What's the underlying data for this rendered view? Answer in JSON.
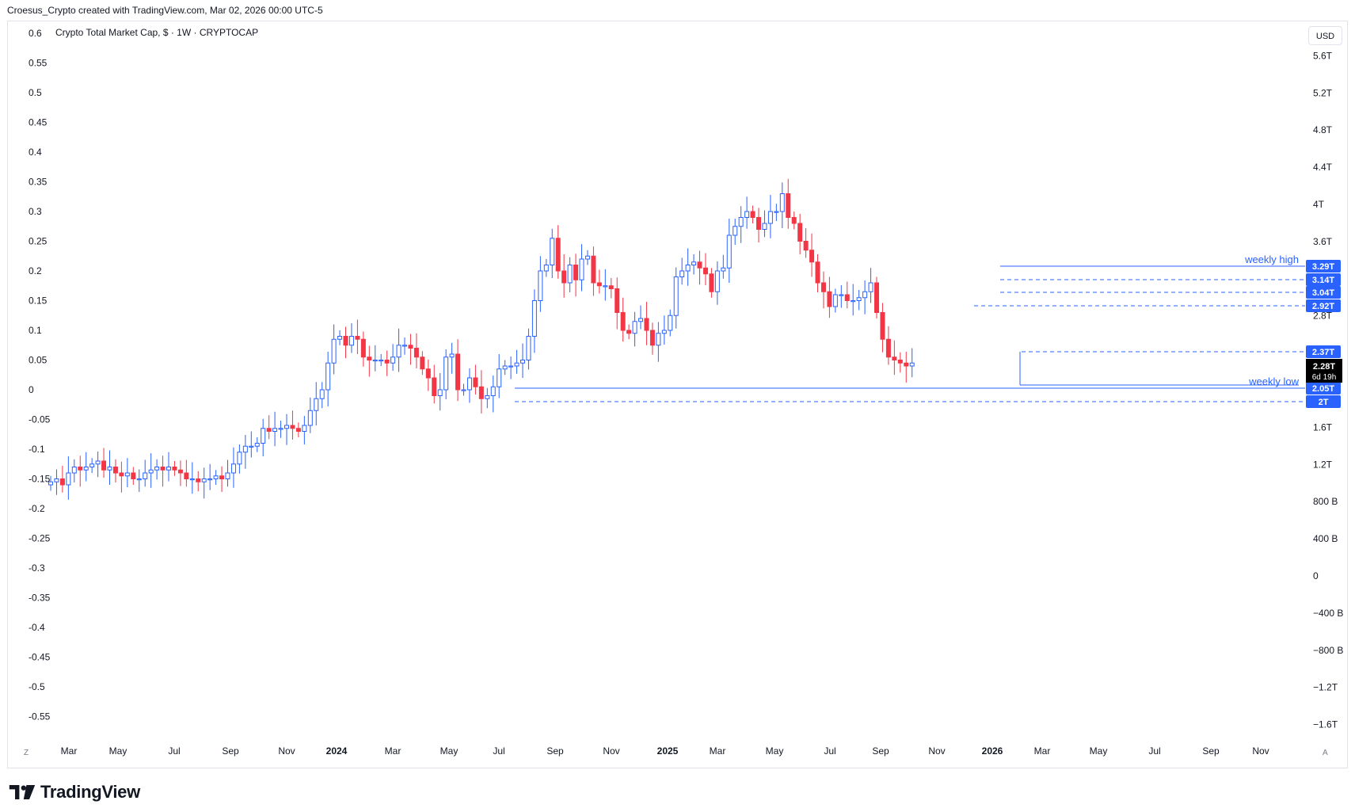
{
  "header": {
    "text": "Croesus_Crypto created with TradingView.com, Mar 02, 2026 00:00 UTC-5"
  },
  "chart_title": "Crypto Total Market Cap, $ · 1W · CRYPTOCAP",
  "currency_button": "USD",
  "footer": {
    "brand": "TradingView",
    "logo_icon": "tradingview-logo-icon"
  },
  "buttons": {
    "zoom_label": "Z",
    "auto_label": "A"
  },
  "colors": {
    "up": "#2962ff",
    "down": "#f23645",
    "grid": "#f0f3fa",
    "label_bg": "#2962ff",
    "last_price_bg": "#000000"
  },
  "chart_data": {
    "type": "candlestick",
    "title": "Crypto Total Market Cap, $ · 1W · CRYPTOCAP",
    "left_axis": {
      "ticks": [
        "0.6",
        "0.55",
        "0.5",
        "0.45",
        "0.4",
        "0.35",
        "0.3",
        "0.25",
        "0.2",
        "0.15",
        "0.1",
        "0.05",
        "0",
        "-0.05",
        "-0.1",
        "-0.15",
        "-0.2",
        "-0.25",
        "-0.3",
        "-0.35",
        "-0.4",
        "-0.45",
        "-0.5",
        "-0.55"
      ],
      "range": [
        -0.58,
        0.62
      ]
    },
    "right_axis": {
      "ticks": [
        "5.6T",
        "5.2T",
        "4.8T",
        "4.4T",
        "4T",
        "3.6T",
        "2.8T",
        "1.6T",
        "1.2T",
        "800 B",
        "400 B",
        "0",
        "−400 B",
        "−800 B",
        "−1.2T",
        "−1.6T"
      ],
      "unit": "USD"
    },
    "x_axis": {
      "ticks": [
        "Mar",
        "May",
        "Jul",
        "Sep",
        "Nov",
        "2024",
        "Mar",
        "May",
        "Jul",
        "Sep",
        "Nov",
        "2025",
        "Mar",
        "May",
        "Jul",
        "Sep",
        "Nov",
        "2026",
        "Mar",
        "May",
        "Jul",
        "Sep",
        "Nov"
      ],
      "bold": [
        5,
        11,
        17
      ]
    },
    "weekly_closes": [
      -0.155,
      -0.15,
      -0.16,
      -0.14,
      -0.13,
      -0.135,
      -0.13,
      -0.125,
      -0.12,
      -0.135,
      -0.13,
      -0.14,
      -0.145,
      -0.14,
      -0.15,
      -0.15,
      -0.14,
      -0.135,
      -0.13,
      -0.135,
      -0.13,
      -0.135,
      -0.14,
      -0.15,
      -0.15,
      -0.155,
      -0.15,
      -0.15,
      -0.145,
      -0.15,
      -0.14,
      -0.125,
      -0.105,
      -0.095,
      -0.095,
      -0.09,
      -0.065,
      -0.07,
      -0.065,
      -0.065,
      -0.06,
      -0.065,
      -0.07,
      -0.06,
      -0.035,
      -0.015,
      0.0,
      0.045,
      0.085,
      0.09,
      0.075,
      0.09,
      0.085,
      0.055,
      0.05,
      0.05,
      0.05,
      0.045,
      0.055,
      0.075,
      0.075,
      0.07,
      0.055,
      0.035,
      0.02,
      -0.01,
      0.0,
      0.055,
      0.06,
      0.0,
      0.0,
      0.02,
      0.005,
      -0.015,
      -0.01,
      0.005,
      0.035,
      0.04,
      0.04,
      0.045,
      0.05,
      0.09,
      0.15,
      0.2,
      0.21,
      0.255,
      0.2,
      0.18,
      0.21,
      0.185,
      0.22,
      0.225,
      0.18,
      0.175,
      0.175,
      0.17,
      0.13,
      0.1,
      0.095,
      0.115,
      0.12,
      0.1,
      0.075,
      0.095,
      0.1,
      0.125,
      0.19,
      0.2,
      0.21,
      0.215,
      0.205,
      0.195,
      0.165,
      0.2,
      0.205,
      0.26,
      0.275,
      0.29,
      0.3,
      0.29,
      0.27,
      0.28,
      0.3,
      0.3,
      0.33,
      0.29,
      0.28,
      0.25,
      0.235,
      0.215,
      0.18,
      0.165,
      0.14,
      0.16,
      0.16,
      0.15,
      0.15,
      0.155,
      0.165,
      0.18,
      0.13,
      0.085,
      0.055,
      0.05,
      0.045,
      0.04,
      0.045
    ],
    "levels": [
      {
        "label": "weekly high",
        "value": "3.29T",
        "style": "solid"
      },
      {
        "value": "3.14T",
        "style": "dashed"
      },
      {
        "value": "3.04T",
        "style": "dashed"
      },
      {
        "value": "2.92T",
        "style": "dashed"
      },
      {
        "value": "2.37T",
        "style": "dashed"
      },
      {
        "label": "weekly low",
        "value": "2.05T",
        "style": "solid"
      },
      {
        "value": "2T",
        "style": "dashed"
      }
    ],
    "last_price": {
      "value": "2.28T",
      "countdown": "6d 19h"
    },
    "grid": false
  }
}
